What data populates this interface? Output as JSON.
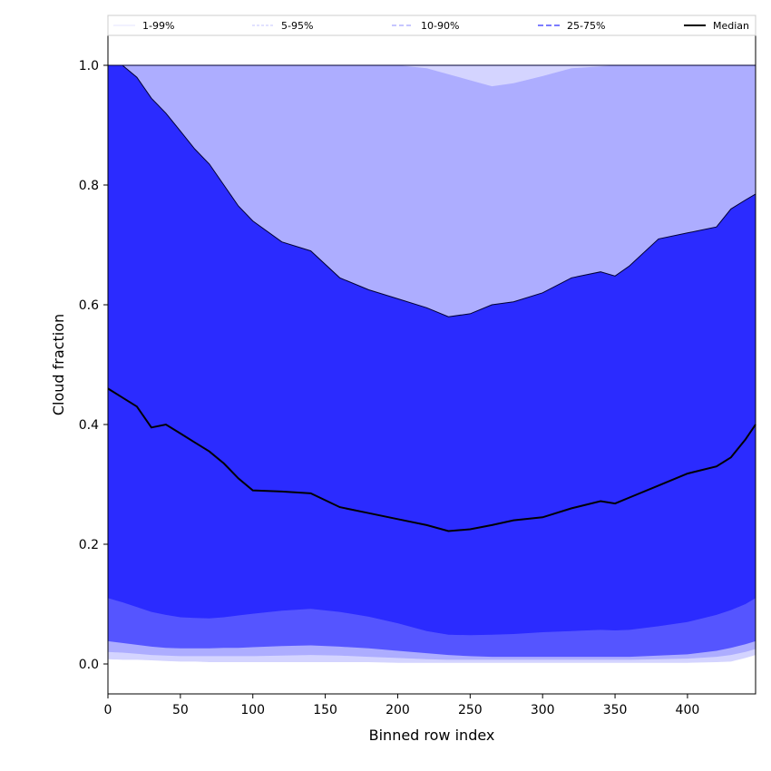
{
  "chart_data": {
    "type": "area",
    "title": "",
    "xlabel": "Binned row index",
    "ylabel": "Cloud fraction",
    "xlim": [
      0,
      447
    ],
    "ylim": [
      -0.05,
      1.05
    ],
    "xticks": [
      0,
      50,
      100,
      150,
      200,
      250,
      300,
      350,
      400
    ],
    "yticks": [
      0.0,
      0.2,
      0.4,
      0.6,
      0.8,
      1.0
    ],
    "xtick_labels": [
      "0",
      "50",
      "100",
      "150",
      "200",
      "250",
      "300",
      "350",
      "400"
    ],
    "ytick_labels": [
      "0.0",
      "0.2",
      "0.4",
      "0.6",
      "0.8",
      "1.0"
    ],
    "grid": false,
    "legend_position": "top",
    "x": [
      0,
      10,
      20,
      30,
      40,
      50,
      60,
      70,
      80,
      90,
      100,
      120,
      140,
      160,
      180,
      200,
      220,
      235,
      250,
      265,
      280,
      300,
      320,
      340,
      350,
      360,
      380,
      400,
      420,
      430,
      440,
      447
    ],
    "series": [
      {
        "name": "1-99%",
        "color": "#d4d4ff",
        "lower": [
          0.008,
          0.007,
          0.007,
          0.006,
          0.005,
          0.004,
          0.004,
          0.003,
          0.003,
          0.003,
          0.003,
          0.003,
          0.003,
          0.003,
          0.003,
          0.002,
          0.002,
          0.002,
          0.002,
          0.002,
          0.002,
          0.002,
          0.002,
          0.002,
          0.002,
          0.002,
          0.002,
          0.002,
          0.003,
          0.004,
          0.01,
          0.015
        ],
        "upper": [
          1,
          1,
          1,
          1,
          1,
          1,
          1,
          1,
          1,
          1,
          1,
          1,
          1,
          1,
          1,
          1,
          1,
          1,
          1,
          1,
          1,
          1,
          1,
          1,
          1,
          1,
          1,
          1,
          1,
          1,
          1,
          1
        ]
      },
      {
        "name": "5-95%",
        "color": "#adadff",
        "lower": [
          0.02,
          0.019,
          0.017,
          0.015,
          0.014,
          0.013,
          0.013,
          0.013,
          0.013,
          0.013,
          0.013,
          0.014,
          0.015,
          0.014,
          0.012,
          0.01,
          0.008,
          0.007,
          0.007,
          0.007,
          0.007,
          0.007,
          0.007,
          0.007,
          0.007,
          0.007,
          0.008,
          0.009,
          0.012,
          0.015,
          0.02,
          0.025
        ],
        "upper": [
          1,
          1,
          1,
          1,
          1,
          1,
          1,
          1,
          1,
          1,
          1,
          1,
          1,
          1,
          1,
          1,
          0.995,
          0.985,
          0.975,
          0.965,
          0.97,
          0.982,
          0.995,
          0.998,
          1,
          1,
          1,
          1,
          1,
          1,
          1,
          1
        ]
      },
      {
        "name": "10-90%",
        "color": "#5555ff",
        "lower": [
          0.038,
          0.035,
          0.032,
          0.029,
          0.027,
          0.026,
          0.026,
          0.026,
          0.027,
          0.027,
          0.028,
          0.03,
          0.031,
          0.029,
          0.026,
          0.022,
          0.018,
          0.015,
          0.013,
          0.012,
          0.012,
          0.012,
          0.012,
          0.012,
          0.012,
          0.012,
          0.014,
          0.016,
          0.022,
          0.027,
          0.033,
          0.038
        ],
        "upper": [
          1,
          1,
          0.98,
          0.945,
          0.92,
          0.89,
          0.86,
          0.835,
          0.8,
          0.765,
          0.74,
          0.705,
          0.69,
          0.645,
          0.625,
          0.61,
          0.595,
          0.58,
          0.585,
          0.6,
          0.605,
          0.62,
          0.645,
          0.655,
          0.648,
          0.665,
          0.71,
          0.72,
          0.73,
          0.76,
          0.775,
          0.785
        ]
      },
      {
        "name": "25-75%",
        "color": "#2b2bff",
        "lower": [
          0.11,
          0.103,
          0.095,
          0.087,
          0.082,
          0.078,
          0.077,
          0.076,
          0.078,
          0.081,
          0.084,
          0.089,
          0.092,
          0.087,
          0.079,
          0.068,
          0.055,
          0.049,
          0.048,
          0.049,
          0.05,
          0.053,
          0.055,
          0.057,
          0.056,
          0.057,
          0.063,
          0.07,
          0.082,
          0.09,
          0.1,
          0.11
        ],
        "upper": [
          1,
          1,
          0.98,
          0.945,
          0.92,
          0.89,
          0.86,
          0.835,
          0.8,
          0.765,
          0.74,
          0.705,
          0.69,
          0.645,
          0.625,
          0.61,
          0.595,
          0.58,
          0.585,
          0.6,
          0.605,
          0.62,
          0.645,
          0.655,
          0.648,
          0.665,
          0.71,
          0.72,
          0.73,
          0.76,
          0.775,
          0.785
        ]
      },
      {
        "name": "Median",
        "color": "#000000",
        "values": [
          0.46,
          0.445,
          0.43,
          0.395,
          0.4,
          0.385,
          0.37,
          0.355,
          0.335,
          0.31,
          0.29,
          0.288,
          0.285,
          0.262,
          0.252,
          0.242,
          0.232,
          0.222,
          0.225,
          0.232,
          0.24,
          0.245,
          0.26,
          0.272,
          0.268,
          0.278,
          0.298,
          0.318,
          0.33,
          0.345,
          0.375,
          0.4
        ]
      }
    ]
  }
}
